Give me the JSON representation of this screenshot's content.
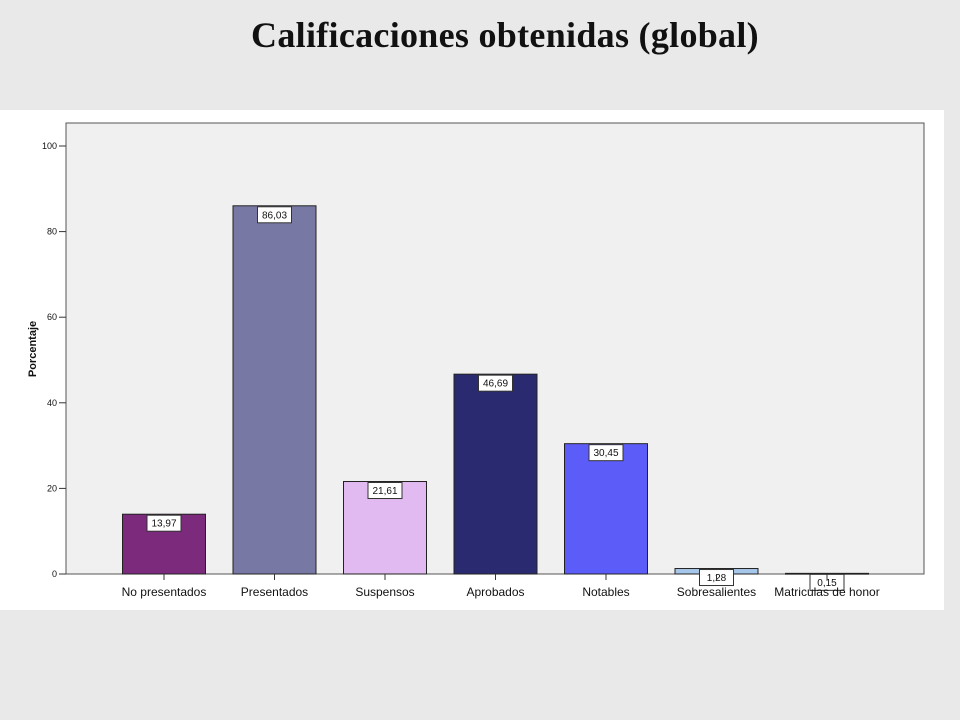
{
  "slide": {
    "title": "Calificaciones obtenidas (global)"
  },
  "chart_data": {
    "type": "bar",
    "ylabel": "Porcentaje",
    "xlabel": "",
    "ylim": [
      0,
      100
    ],
    "yticks": [
      0,
      20,
      40,
      60,
      80,
      100
    ],
    "grid": false,
    "categories": [
      "No presentados",
      "Presentados",
      "Suspensos",
      "Aprobados",
      "Notables",
      "Sobresalientes",
      "Matriculas de honor"
    ],
    "values": [
      13.97,
      86.03,
      21.61,
      46.69,
      30.45,
      1.28,
      0.15
    ],
    "value_labels": [
      "13,97",
      "86,03",
      "21,61",
      "46,69",
      "30,45",
      "1,28",
      "0,15"
    ],
    "colors": [
      "#7b2a7c",
      "#7778a4",
      "#e0baf0",
      "#292a70",
      "#5c5cf8",
      "#a7c7ea",
      "#1a1a40"
    ]
  }
}
